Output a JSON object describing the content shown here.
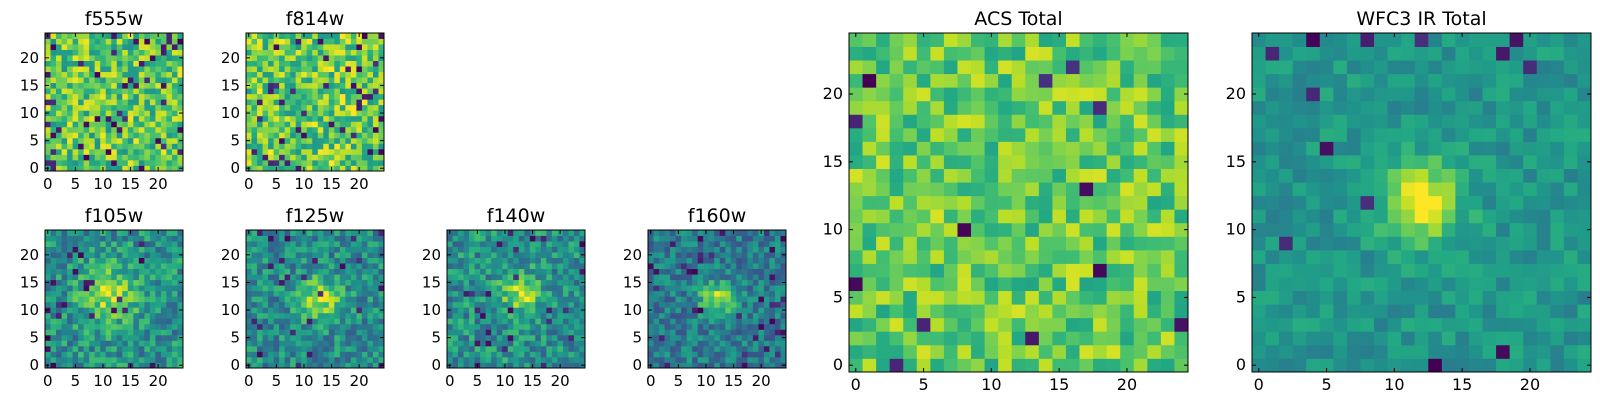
{
  "figure": {
    "colormap": "viridis",
    "colors": {
      "background": "#ffffff",
      "axis": "#000000"
    }
  },
  "chart_data": [
    {
      "type": "heatmap",
      "title": "f555w",
      "grid_size": [
        25,
        25
      ],
      "xlim": [
        -0.5,
        24.5
      ],
      "ylim": [
        -0.5,
        24.5
      ],
      "x_ticks": [
        0,
        5,
        10,
        15,
        20
      ],
      "x_tick_labels": [
        "0",
        "5",
        "10",
        "15",
        "20"
      ],
      "y_ticks": [
        0,
        5,
        10,
        15,
        20
      ],
      "y_tick_labels": [
        "0",
        "5",
        "10",
        "15",
        "20"
      ],
      "value_range": [
        0,
        1
      ],
      "pattern": "noise",
      "noise": 0.24,
      "centre_peak": 0.0,
      "dark_fraction": 0.08,
      "base_level": 0.74,
      "seed": 11
    },
    {
      "type": "heatmap",
      "title": "f814w",
      "grid_size": [
        25,
        25
      ],
      "xlim": [
        -0.5,
        24.5
      ],
      "ylim": [
        -0.5,
        24.5
      ],
      "x_ticks": [
        0,
        5,
        10,
        15,
        20
      ],
      "x_tick_labels": [
        "0",
        "5",
        "10",
        "15",
        "20"
      ],
      "y_ticks": [
        0,
        5,
        10,
        15,
        20
      ],
      "y_tick_labels": [
        "0",
        "5",
        "10",
        "15",
        "20"
      ],
      "value_range": [
        0,
        1
      ],
      "pattern": "noise",
      "noise": 0.24,
      "centre_peak": 0.0,
      "dark_fraction": 0.06,
      "base_level": 0.76,
      "seed": 23
    },
    {
      "type": "heatmap",
      "title": "f105w",
      "grid_size": [
        25,
        25
      ],
      "xlim": [
        -0.5,
        24.5
      ],
      "ylim": [
        -0.5,
        24.5
      ],
      "x_ticks": [
        0,
        5,
        10,
        15,
        20
      ],
      "x_tick_labels": [
        "0",
        "5",
        "10",
        "15",
        "20"
      ],
      "y_ticks": [
        0,
        5,
        10,
        15,
        20
      ],
      "y_tick_labels": [
        "0",
        "5",
        "10",
        "15",
        "20"
      ],
      "value_range": [
        0,
        1
      ],
      "pattern": "source",
      "source_centre": [
        11,
        13
      ],
      "source_sigma": 3.5,
      "noise": 0.2,
      "centre_peak": 0.38,
      "dark_fraction": 0.04,
      "base_level": 0.5,
      "seed": 37
    },
    {
      "type": "heatmap",
      "title": "f125w",
      "grid_size": [
        25,
        25
      ],
      "xlim": [
        -0.5,
        24.5
      ],
      "ylim": [
        -0.5,
        24.5
      ],
      "x_ticks": [
        0,
        5,
        10,
        15,
        20
      ],
      "x_tick_labels": [
        "0",
        "5",
        "10",
        "15",
        "20"
      ],
      "y_ticks": [
        0,
        5,
        10,
        15,
        20
      ],
      "y_tick_labels": [
        "0",
        "5",
        "10",
        "15",
        "20"
      ],
      "value_range": [
        0,
        1
      ],
      "pattern": "source",
      "source_centre": [
        13,
        12
      ],
      "source_sigma": 2.6,
      "noise": 0.19,
      "centre_peak": 0.42,
      "dark_fraction": 0.05,
      "base_level": 0.48,
      "seed": 41
    },
    {
      "type": "heatmap",
      "title": "f140w",
      "grid_size": [
        25,
        25
      ],
      "xlim": [
        -0.5,
        24.5
      ],
      "ylim": [
        -0.5,
        24.5
      ],
      "x_ticks": [
        0,
        5,
        10,
        15,
        20
      ],
      "x_tick_labels": [
        "0",
        "5",
        "10",
        "15",
        "20"
      ],
      "y_ticks": [
        0,
        5,
        10,
        15,
        20
      ],
      "y_tick_labels": [
        "0",
        "5",
        "10",
        "15",
        "20"
      ],
      "value_range": [
        0,
        1
      ],
      "pattern": "source",
      "source_centre": [
        13,
        13
      ],
      "source_sigma": 2.4,
      "noise": 0.2,
      "centre_peak": 0.4,
      "dark_fraction": 0.05,
      "base_level": 0.5,
      "seed": 53
    },
    {
      "type": "heatmap",
      "title": "f160w",
      "grid_size": [
        25,
        25
      ],
      "xlim": [
        -0.5,
        24.5
      ],
      "ylim": [
        -0.5,
        24.5
      ],
      "x_ticks": [
        0,
        5,
        10,
        15,
        20
      ],
      "x_tick_labels": [
        "0",
        "5",
        "10",
        "15",
        "20"
      ],
      "y_ticks": [
        0,
        5,
        10,
        15,
        20
      ],
      "y_tick_labels": [
        "0",
        "5",
        "10",
        "15",
        "20"
      ],
      "value_range": [
        0,
        1
      ],
      "pattern": "source",
      "source_centre": [
        12,
        12
      ],
      "source_sigma": 2.2,
      "noise": 0.17,
      "centre_peak": 0.45,
      "dark_fraction": 0.05,
      "base_level": 0.42,
      "seed": 67
    },
    {
      "type": "heatmap",
      "title": "ACS Total",
      "grid_size": [
        25,
        25
      ],
      "xlim": [
        -0.5,
        24.5
      ],
      "ylim": [
        -0.5,
        24.5
      ],
      "x_ticks": [
        0,
        5,
        10,
        15,
        20
      ],
      "x_tick_labels": [
        "0",
        "5",
        "10",
        "15",
        "20"
      ],
      "y_ticks": [
        0,
        5,
        10,
        15,
        20
      ],
      "y_tick_labels": [
        "0",
        "5",
        "10",
        "15",
        "20"
      ],
      "value_range": [
        0,
        1
      ],
      "pattern": "noise",
      "noise": 0.18,
      "centre_peak": 0.0,
      "dark_fraction": 0.025,
      "base_level": 0.76,
      "seed": 79
    },
    {
      "type": "heatmap",
      "title": "WFC3 IR Total",
      "grid_size": [
        25,
        25
      ],
      "xlim": [
        -0.5,
        24.5
      ],
      "ylim": [
        -0.5,
        24.5
      ],
      "x_ticks": [
        0,
        5,
        10,
        15,
        20
      ],
      "x_tick_labels": [
        "0",
        "5",
        "10",
        "15",
        "20"
      ],
      "y_ticks": [
        0,
        5,
        10,
        15,
        20
      ],
      "y_tick_labels": [
        "0",
        "5",
        "10",
        "15",
        "20"
      ],
      "value_range": [
        0,
        1
      ],
      "pattern": "source",
      "source_centre": [
        12,
        12
      ],
      "source_sigma": 2.0,
      "noise": 0.1,
      "centre_peak": 0.48,
      "dark_fraction": 0.025,
      "base_level": 0.52,
      "seed": 97
    }
  ]
}
